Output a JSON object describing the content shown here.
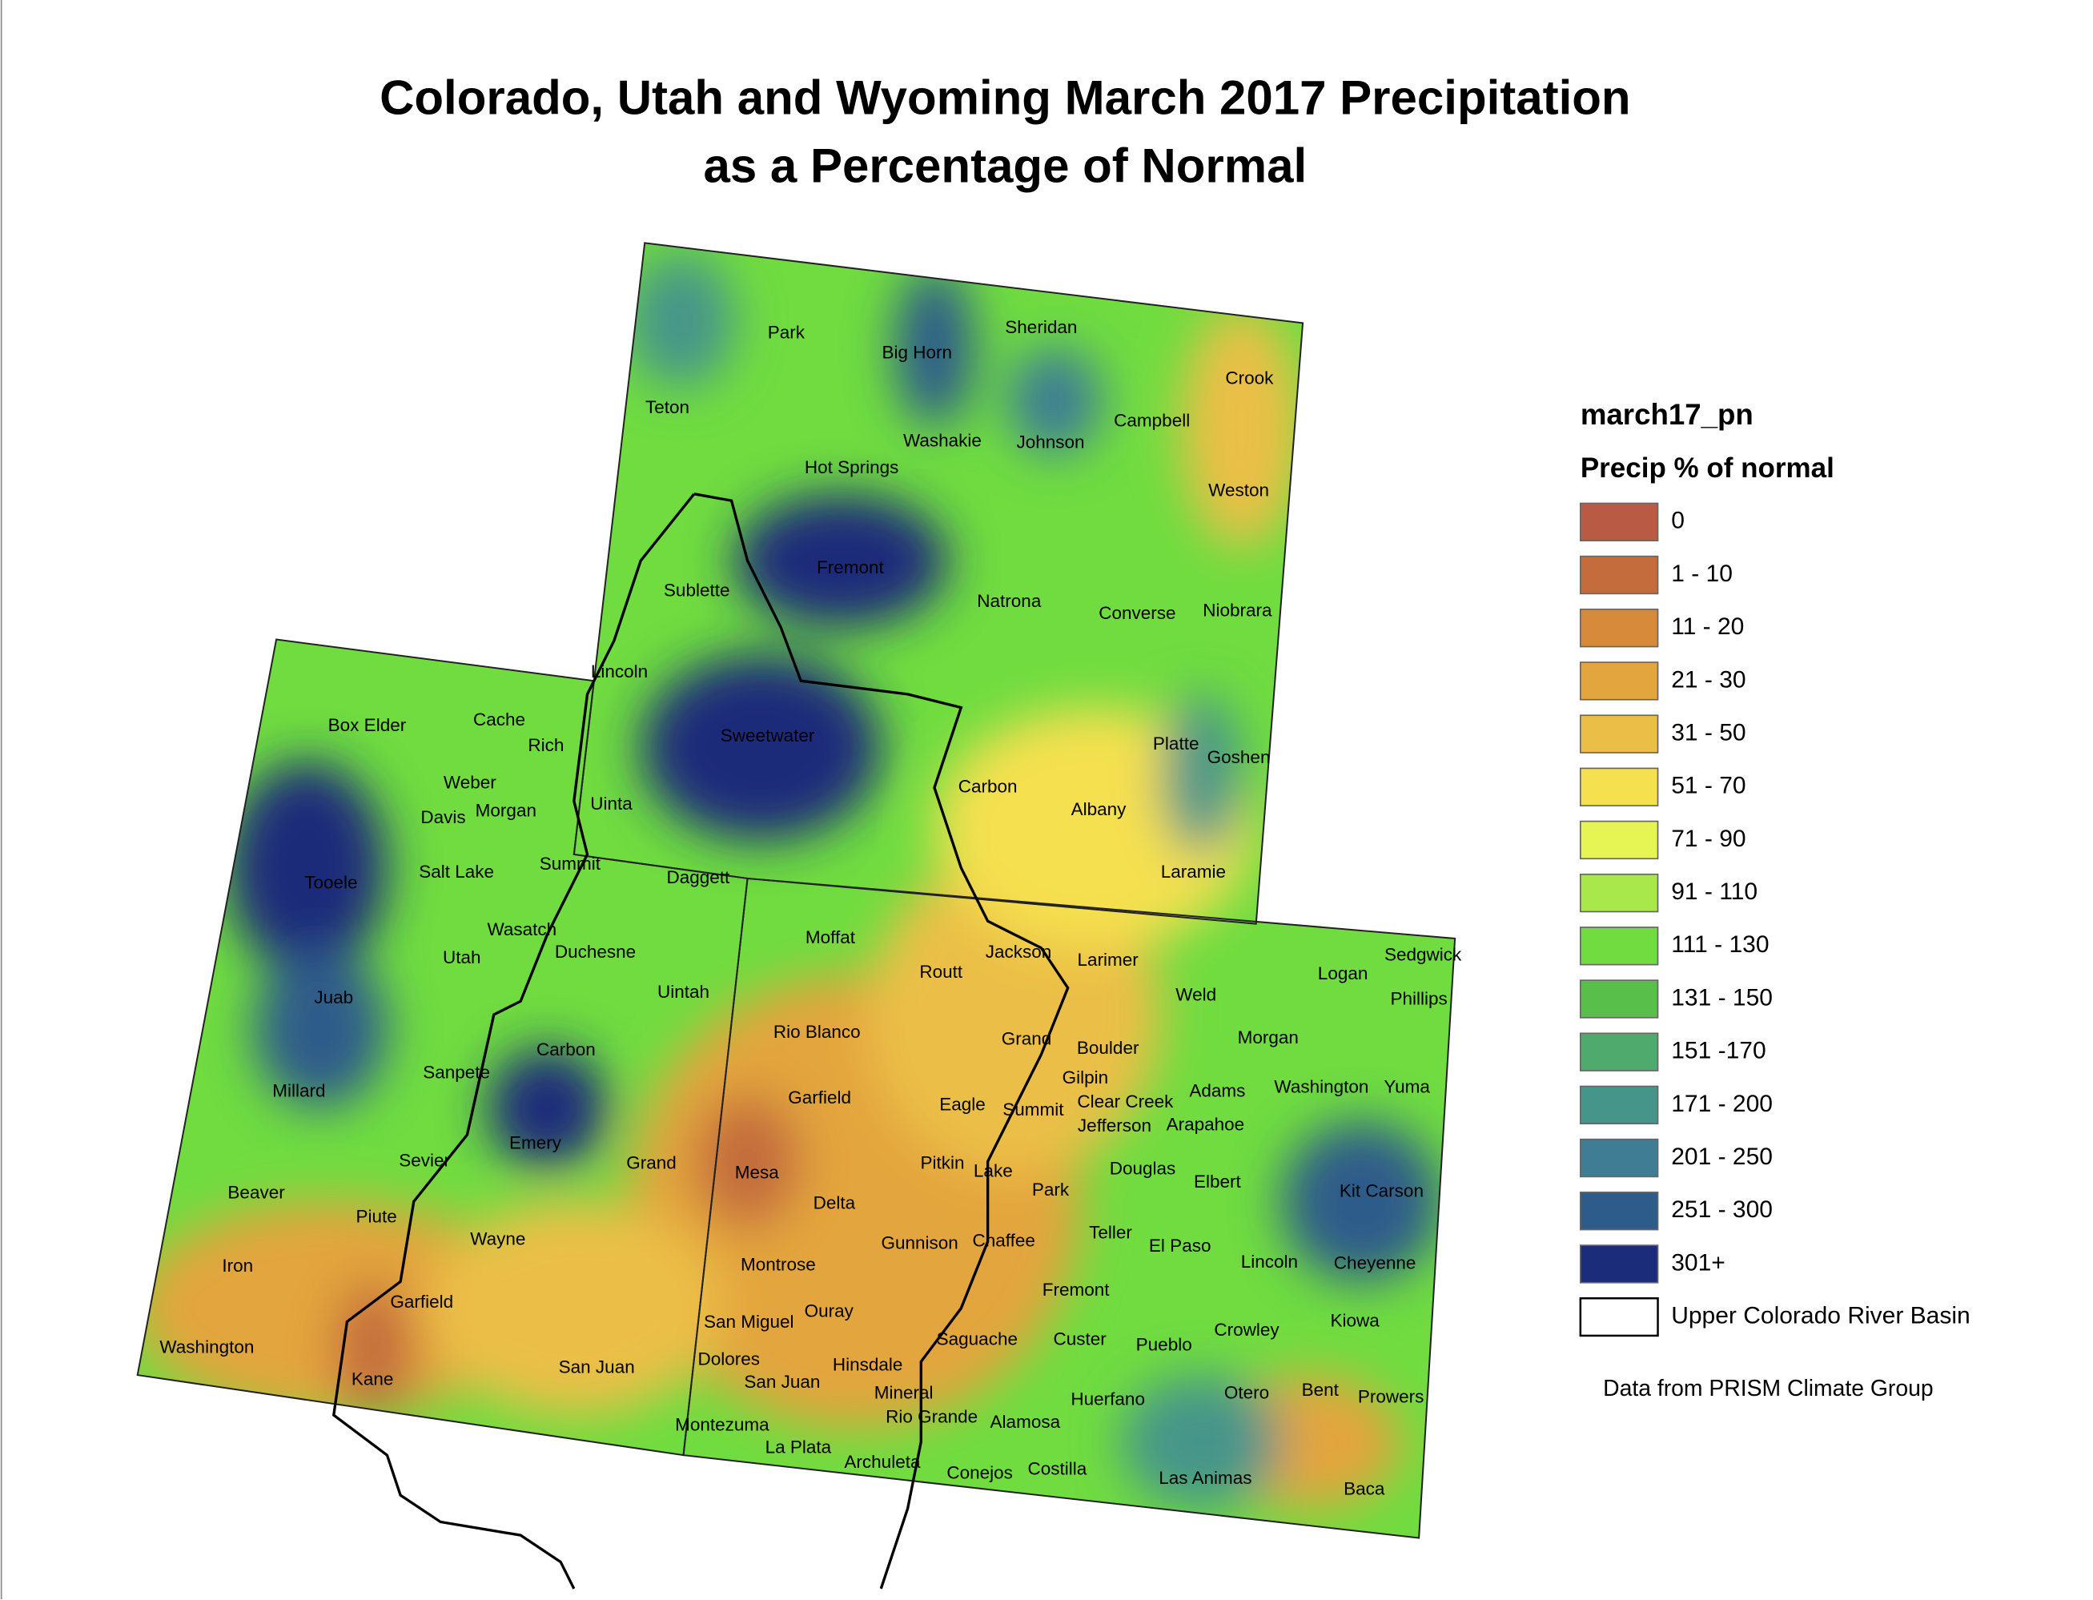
{
  "title": [
    "Colorado, Utah and Wyoming March 2017 Precipitation",
    "as a Percentage of Normal"
  ],
  "legend": {
    "layer": "march17_pn",
    "field": "Precip % of normal",
    "classes": [
      {
        "label": "0",
        "color": "#b95a45"
      },
      {
        "label": "1 - 10",
        "color": "#c46c3c"
      },
      {
        "label": "11 - 20",
        "color": "#d68a3a"
      },
      {
        "label": "21 - 30",
        "color": "#e3a53e"
      },
      {
        "label": "31 - 50",
        "color": "#ebbf47"
      },
      {
        "label": "51 - 70",
        "color": "#f5e050"
      },
      {
        "label": "71 - 90",
        "color": "#e6f553"
      },
      {
        "label": "91 - 110",
        "color": "#a8e84b"
      },
      {
        "label": "111 - 130",
        "color": "#70dc40"
      },
      {
        "label": "131 - 150",
        "color": "#58c04a"
      },
      {
        "label": "151 -170",
        "color": "#4eaa6d"
      },
      {
        "label": "171 - 200",
        "color": "#46958a"
      },
      {
        "label": "201 - 250",
        "color": "#3e7d94"
      },
      {
        "label": "251 - 300",
        "color": "#2d5b8a"
      },
      {
        "label": "301+",
        "color": "#1a2c7a"
      }
    ],
    "basin": "Upper Colorado River Basin"
  },
  "source": "Data from PRISM Climate Group",
  "county_labels": [
    "Park",
    "Big Horn",
    "Sheridan",
    "Crook",
    "Teton",
    "Washakie",
    "Johnson",
    "Campbell",
    "Hot Springs",
    "Weston",
    "Fremont",
    "Sublette",
    "Natrona",
    "Converse",
    "Niobrara",
    "Lincoln",
    "Sweetwater",
    "Carbon",
    "Albany",
    "Platte",
    "Goshen",
    "Uinta",
    "Laramie",
    "Box Elder",
    "Cache",
    "Rich",
    "Weber",
    "Davis",
    "Morgan",
    "Tooele",
    "Salt Lake",
    "Summit",
    "Daggett",
    "Wasatch",
    "Duchesne",
    "Utah",
    "Uintah",
    "Juab",
    "Carbon",
    "Sanpete",
    "Millard",
    "Emery",
    "Sevier",
    "Grand",
    "Beaver",
    "Piute",
    "Wayne",
    "Iron",
    "Garfield",
    "Washington",
    "Kane",
    "San Juan",
    "Moffat",
    "Jackson",
    "Larimer",
    "Logan",
    "Sedgwick",
    "Phillips",
    "Routt",
    "Weld",
    "Rio Blanco",
    "Grand",
    "Boulder",
    "Morgan",
    "Gilpin",
    "Garfield",
    "Eagle",
    "Summit",
    "Clear Creek",
    "Adams",
    "Washington",
    "Yuma",
    "Jefferson",
    "Arapahoe",
    "Mesa",
    "Pitkin",
    "Lake",
    "Douglas",
    "Elbert",
    "Park",
    "Kit Carson",
    "Delta",
    "Gunnison",
    "Chaffee",
    "Teller",
    "El Paso",
    "Lincoln",
    "Cheyenne",
    "Montrose",
    "Fremont",
    "Ouray",
    "San Miguel",
    "Kiowa",
    "Crowley",
    "Saguache",
    "Custer",
    "Pueblo",
    "Dolores",
    "Hinsdale",
    "San Juan",
    "Mineral",
    "Otero",
    "Bent",
    "Prowers",
    "Huerfano",
    "Rio Grande",
    "Alamosa",
    "Montezuma",
    "La Plata",
    "Archuleta",
    "Conejos",
    "Costilla",
    "Las Animas",
    "Baca"
  ]
}
